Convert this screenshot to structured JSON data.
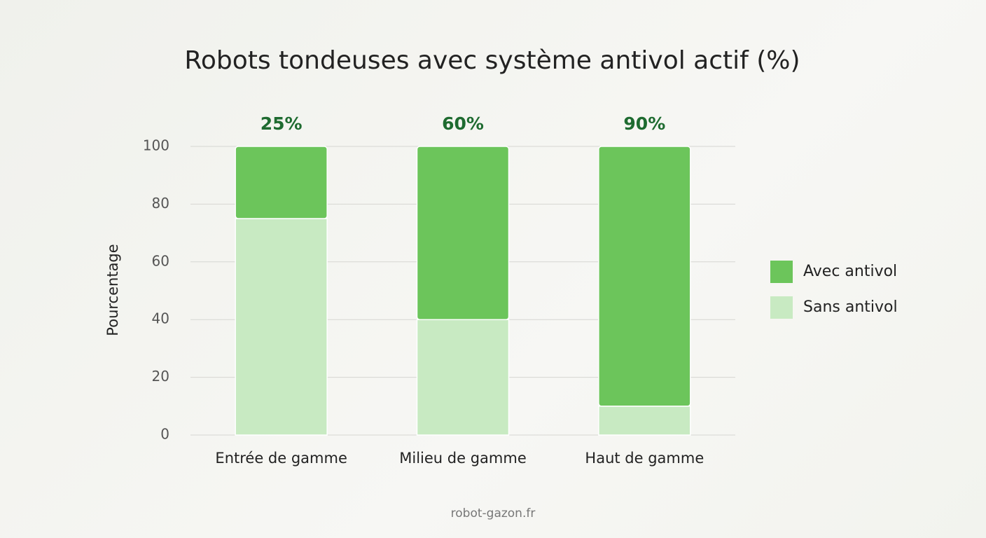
{
  "chart_data": {
    "type": "stacked_bar",
    "title": "Robots tondeuses avec système antivol actif (%)",
    "y_label": "Pourcentage",
    "categories": [
      "Entrée de gamme",
      "Milieu de gamme",
      "Haut de gamme"
    ],
    "series": [
      {
        "name": "Avec antivol",
        "color": "#6cc55b",
        "values": [
          25,
          60,
          90
        ],
        "value_labels": [
          "25%",
          "60%",
          "90%"
        ]
      },
      {
        "name": "Sans antivol",
        "color": "#c8eac2",
        "values": [
          75,
          40,
          10
        ]
      }
    ],
    "ylim": [
      0,
      100
    ],
    "yticks": [
      0,
      20,
      40,
      60,
      80,
      100
    ],
    "grid": true,
    "legend": "right",
    "source": "robot-gazon.fr"
  }
}
